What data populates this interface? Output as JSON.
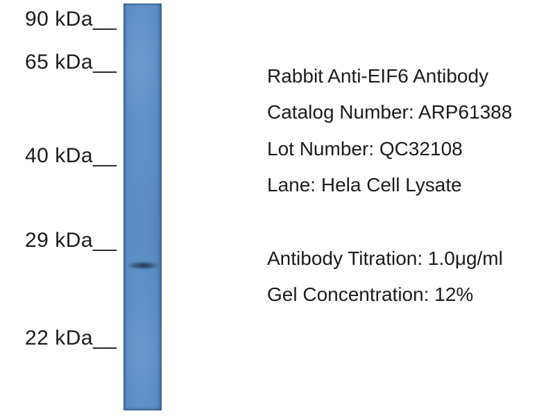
{
  "figure": {
    "kind": "western-blot",
    "colors": {
      "background": "#ffffff",
      "lane_blue": "#5d8fc7",
      "lane_edge_blue": "#4c7eb4",
      "band_dark": "#16283c",
      "text": "#1b1b1b"
    }
  },
  "markers": [
    {
      "label": "90 kDa__"
    },
    {
      "label": "65 kDa__"
    },
    {
      "label": "40 kDa__"
    },
    {
      "label": "29 kDa__"
    },
    {
      "label": "22 kDa__"
    }
  ],
  "info": {
    "lines": [
      "Rabbit Anti-EIF6 Antibody",
      "Catalog Number: ARP61388",
      "Lot Number: QC32108",
      "Lane: Hela Cell Lysate",
      "Antibody Titration: 1.0μg/ml",
      "Gel Concentration: 12%"
    ]
  }
}
